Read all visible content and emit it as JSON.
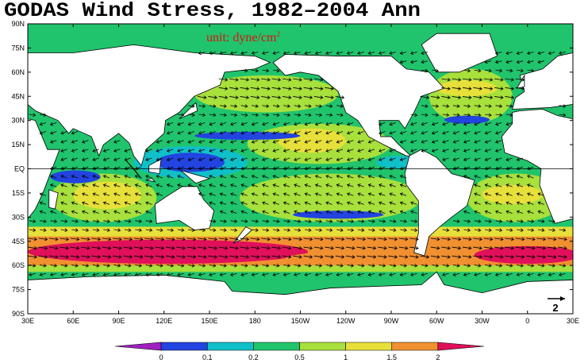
{
  "title": "GODAS Wind Stress, 1982–2004 Ann",
  "unit": {
    "text": "unit: dyne/cm",
    "superscript": "2"
  },
  "lat_labels": [
    "90N",
    "75N",
    "60N",
    "45N",
    "30N",
    "15N",
    "EQ",
    "15S",
    "30S",
    "45S",
    "60S",
    "75S",
    "90S"
  ],
  "lon_labels": [
    "30E",
    "60E",
    "90E",
    "120E",
    "150E",
    "180",
    "150W",
    "120W",
    "90W",
    "60W",
    "30W",
    "0",
    "30E"
  ],
  "colorbar": {
    "labels": [
      "0",
      "0.1",
      "0.2",
      "0.5",
      "1",
      "1.5",
      "2"
    ],
    "colors": [
      "#a020c0",
      "#2244e0",
      "#10c0c8",
      "#20c46c",
      "#a8e03c",
      "#e8e03a",
      "#f09030",
      "#e0105a"
    ]
  },
  "reference_vector": "2"
}
